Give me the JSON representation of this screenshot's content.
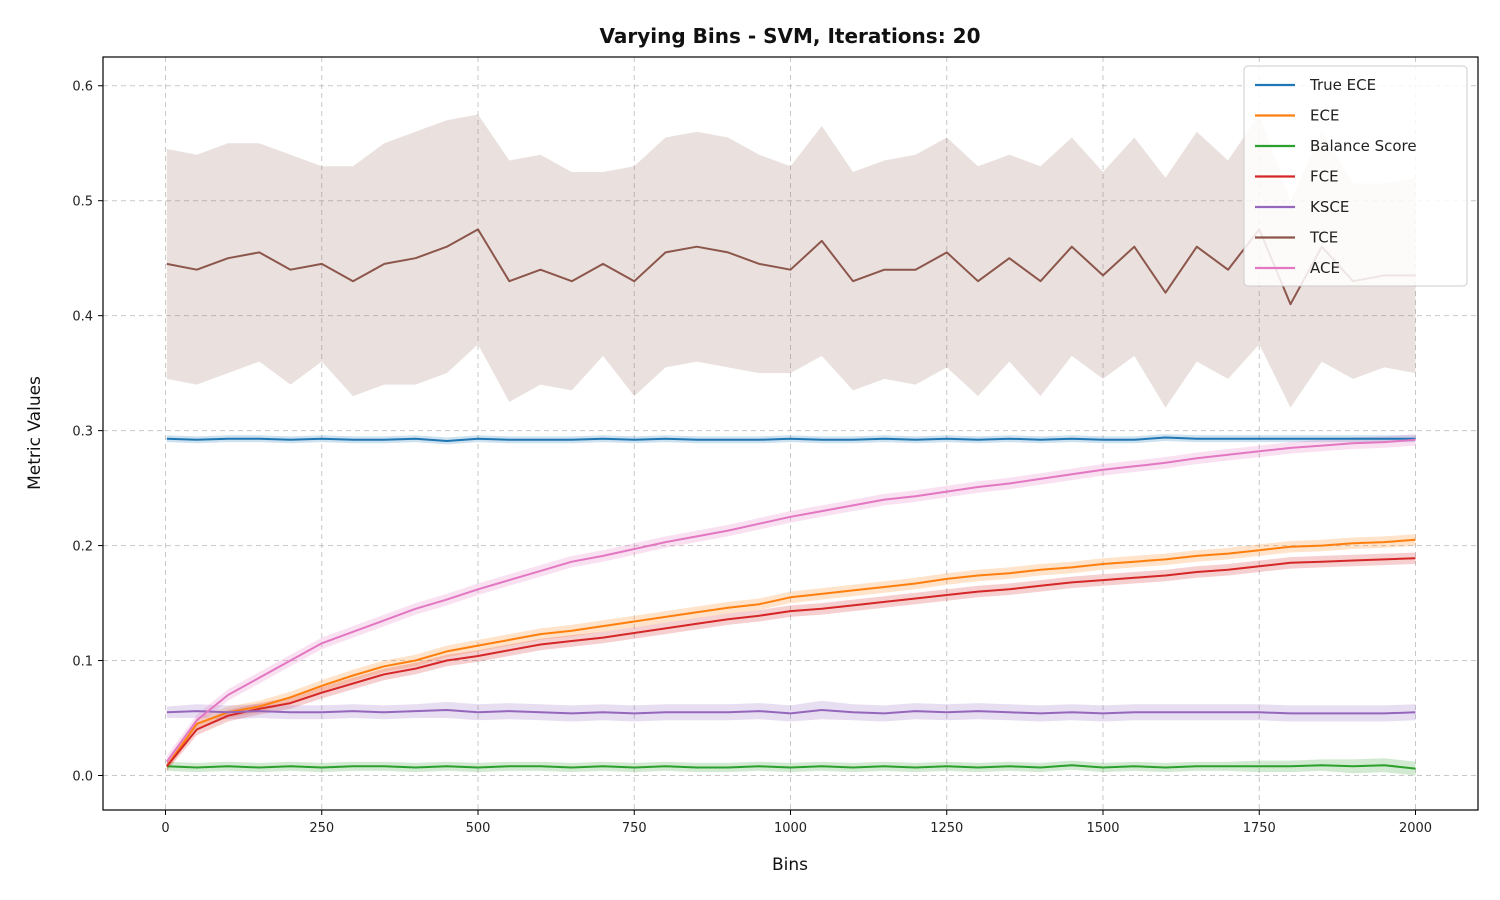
{
  "chart_data": {
    "type": "line",
    "title": "Varying Bins - SVM, Iterations: 20",
    "xlabel": "Bins",
    "ylabel": "Metric Values",
    "xlim": [
      -100,
      2100
    ],
    "ylim": [
      -0.03,
      0.625
    ],
    "xticks": [
      0,
      250,
      500,
      750,
      1000,
      1250,
      1500,
      1750,
      2000
    ],
    "yticks": [
      0.0,
      0.1,
      0.2,
      0.3,
      0.4,
      0.5,
      0.6
    ],
    "xtick_labels": [
      "0",
      "250",
      "500",
      "750",
      "1000",
      "1250",
      "1500",
      "1750",
      "2000"
    ],
    "ytick_labels": [
      "0.0",
      "0.1",
      "0.2",
      "0.3",
      "0.4",
      "0.5",
      "0.6"
    ],
    "grid": true,
    "legend_position": "top-right",
    "x": [
      2,
      50,
      100,
      150,
      200,
      250,
      300,
      350,
      400,
      450,
      500,
      550,
      600,
      650,
      700,
      750,
      800,
      850,
      900,
      950,
      1000,
      1050,
      1100,
      1150,
      1200,
      1250,
      1300,
      1350,
      1400,
      1450,
      1500,
      1550,
      1600,
      1650,
      1700,
      1750,
      1800,
      1850,
      1900,
      1950,
      2000
    ],
    "series": [
      {
        "name": "True ECE",
        "color": "#1f77b4",
        "values": [
          0.293,
          0.292,
          0.293,
          0.293,
          0.292,
          0.293,
          0.292,
          0.292,
          0.293,
          0.291,
          0.293,
          0.292,
          0.292,
          0.292,
          0.293,
          0.292,
          0.293,
          0.292,
          0.292,
          0.292,
          0.293,
          0.292,
          0.292,
          0.293,
          0.292,
          0.293,
          0.292,
          0.293,
          0.292,
          0.293,
          0.292,
          0.292,
          0.294,
          0.293,
          0.293,
          0.293,
          0.293,
          0.293,
          0.293,
          0.293,
          0.293
        ],
        "band": [
          0.003,
          0.003,
          0.003,
          0.003,
          0.003,
          0.003,
          0.003,
          0.003,
          0.003,
          0.003,
          0.003,
          0.003,
          0.003,
          0.003,
          0.003,
          0.003,
          0.003,
          0.003,
          0.003,
          0.003,
          0.003,
          0.003,
          0.003,
          0.003,
          0.003,
          0.003,
          0.003,
          0.003,
          0.003,
          0.003,
          0.003,
          0.003,
          0.003,
          0.003,
          0.003,
          0.003,
          0.003,
          0.003,
          0.003,
          0.003,
          0.003
        ]
      },
      {
        "name": "ECE",
        "color": "#ff7f0e",
        "values": [
          0.008,
          0.045,
          0.055,
          0.06,
          0.068,
          0.078,
          0.087,
          0.095,
          0.1,
          0.108,
          0.113,
          0.118,
          0.123,
          0.126,
          0.13,
          0.134,
          0.138,
          0.142,
          0.146,
          0.149,
          0.155,
          0.158,
          0.161,
          0.164,
          0.167,
          0.171,
          0.174,
          0.176,
          0.179,
          0.181,
          0.184,
          0.186,
          0.188,
          0.191,
          0.193,
          0.196,
          0.199,
          0.2,
          0.202,
          0.203,
          0.205
        ],
        "band": [
          0.004,
          0.005,
          0.005,
          0.005,
          0.005,
          0.005,
          0.005,
          0.005,
          0.005,
          0.005,
          0.005,
          0.005,
          0.005,
          0.005,
          0.005,
          0.005,
          0.005,
          0.005,
          0.005,
          0.005,
          0.005,
          0.005,
          0.005,
          0.005,
          0.005,
          0.005,
          0.005,
          0.005,
          0.005,
          0.005,
          0.005,
          0.005,
          0.005,
          0.005,
          0.005,
          0.005,
          0.005,
          0.005,
          0.005,
          0.005,
          0.005
        ]
      },
      {
        "name": "Balance Score",
        "color": "#2ca02c",
        "values": [
          0.008,
          0.007,
          0.008,
          0.007,
          0.008,
          0.007,
          0.008,
          0.008,
          0.007,
          0.008,
          0.007,
          0.008,
          0.008,
          0.007,
          0.008,
          0.007,
          0.008,
          0.007,
          0.007,
          0.008,
          0.007,
          0.008,
          0.007,
          0.008,
          0.007,
          0.008,
          0.007,
          0.008,
          0.007,
          0.009,
          0.007,
          0.008,
          0.007,
          0.008,
          0.008,
          0.008,
          0.008,
          0.009,
          0.008,
          0.009,
          0.006
        ],
        "band": [
          0.004,
          0.004,
          0.004,
          0.004,
          0.004,
          0.004,
          0.004,
          0.004,
          0.004,
          0.004,
          0.004,
          0.004,
          0.004,
          0.004,
          0.004,
          0.004,
          0.004,
          0.004,
          0.004,
          0.004,
          0.004,
          0.004,
          0.004,
          0.004,
          0.004,
          0.004,
          0.004,
          0.004,
          0.004,
          0.004,
          0.004,
          0.004,
          0.004,
          0.004,
          0.004,
          0.005,
          0.005,
          0.005,
          0.006,
          0.006,
          0.006
        ]
      },
      {
        "name": "FCE",
        "color": "#d62728",
        "values": [
          0.008,
          0.04,
          0.052,
          0.058,
          0.063,
          0.072,
          0.08,
          0.088,
          0.093,
          0.1,
          0.104,
          0.109,
          0.114,
          0.117,
          0.12,
          0.124,
          0.128,
          0.132,
          0.136,
          0.139,
          0.143,
          0.145,
          0.148,
          0.151,
          0.154,
          0.157,
          0.16,
          0.162,
          0.165,
          0.168,
          0.17,
          0.172,
          0.174,
          0.177,
          0.179,
          0.182,
          0.185,
          0.186,
          0.187,
          0.188,
          0.189
        ],
        "band": [
          0.004,
          0.005,
          0.005,
          0.005,
          0.005,
          0.005,
          0.005,
          0.005,
          0.005,
          0.005,
          0.005,
          0.005,
          0.005,
          0.005,
          0.005,
          0.005,
          0.005,
          0.005,
          0.005,
          0.005,
          0.005,
          0.005,
          0.005,
          0.005,
          0.005,
          0.005,
          0.005,
          0.005,
          0.005,
          0.005,
          0.005,
          0.005,
          0.005,
          0.005,
          0.005,
          0.005,
          0.005,
          0.005,
          0.005,
          0.005,
          0.005
        ]
      },
      {
        "name": "KSCE",
        "color": "#9467bd",
        "values": [
          0.055,
          0.056,
          0.055,
          0.056,
          0.055,
          0.055,
          0.056,
          0.055,
          0.056,
          0.057,
          0.055,
          0.056,
          0.055,
          0.054,
          0.055,
          0.054,
          0.055,
          0.055,
          0.055,
          0.056,
          0.054,
          0.057,
          0.055,
          0.054,
          0.056,
          0.055,
          0.056,
          0.055,
          0.054,
          0.055,
          0.054,
          0.055,
          0.055,
          0.055,
          0.055,
          0.055,
          0.054,
          0.054,
          0.054,
          0.054,
          0.055
        ],
        "band": [
          0.005,
          0.006,
          0.006,
          0.006,
          0.006,
          0.006,
          0.006,
          0.006,
          0.006,
          0.007,
          0.007,
          0.007,
          0.007,
          0.007,
          0.007,
          0.007,
          0.007,
          0.007,
          0.007,
          0.007,
          0.007,
          0.008,
          0.007,
          0.007,
          0.007,
          0.007,
          0.007,
          0.007,
          0.007,
          0.007,
          0.007,
          0.007,
          0.007,
          0.007,
          0.007,
          0.007,
          0.007,
          0.007,
          0.007,
          0.007,
          0.007
        ]
      },
      {
        "name": "TCE",
        "color": "#8c564b",
        "values": [
          0.445,
          0.44,
          0.45,
          0.455,
          0.44,
          0.445,
          0.43,
          0.445,
          0.45,
          0.46,
          0.475,
          0.43,
          0.44,
          0.43,
          0.445,
          0.43,
          0.455,
          0.46,
          0.455,
          0.445,
          0.44,
          0.465,
          0.43,
          0.44,
          0.44,
          0.455,
          0.43,
          0.45,
          0.43,
          0.46,
          0.435,
          0.46,
          0.42,
          0.46,
          0.44,
          0.475,
          0.41,
          0.46,
          0.43,
          0.435,
          0.435
        ],
        "band": [
          0.1,
          0.1,
          0.1,
          0.095,
          0.1,
          0.085,
          0.1,
          0.105,
          0.11,
          0.11,
          0.1,
          0.105,
          0.1,
          0.095,
          0.08,
          0.1,
          0.1,
          0.1,
          0.1,
          0.095,
          0.09,
          0.1,
          0.095,
          0.095,
          0.1,
          0.1,
          0.1,
          0.09,
          0.1,
          0.095,
          0.09,
          0.095,
          0.1,
          0.1,
          0.095,
          0.1,
          0.09,
          0.1,
          0.085,
          0.08,
          0.085
        ]
      },
      {
        "name": "ACE",
        "color": "#e377c2",
        "values": [
          0.012,
          0.048,
          0.07,
          0.085,
          0.1,
          0.115,
          0.125,
          0.135,
          0.145,
          0.153,
          0.162,
          0.17,
          0.178,
          0.186,
          0.191,
          0.197,
          0.203,
          0.208,
          0.213,
          0.219,
          0.225,
          0.23,
          0.235,
          0.24,
          0.243,
          0.247,
          0.251,
          0.254,
          0.258,
          0.262,
          0.266,
          0.269,
          0.272,
          0.276,
          0.279,
          0.282,
          0.285,
          0.287,
          0.289,
          0.29,
          0.292
        ],
        "band": [
          0.005,
          0.005,
          0.005,
          0.005,
          0.005,
          0.005,
          0.005,
          0.005,
          0.005,
          0.005,
          0.005,
          0.005,
          0.005,
          0.005,
          0.005,
          0.005,
          0.005,
          0.005,
          0.005,
          0.005,
          0.005,
          0.005,
          0.005,
          0.005,
          0.005,
          0.005,
          0.005,
          0.005,
          0.005,
          0.005,
          0.005,
          0.005,
          0.005,
          0.005,
          0.005,
          0.005,
          0.005,
          0.005,
          0.005,
          0.005,
          0.005
        ]
      }
    ]
  }
}
